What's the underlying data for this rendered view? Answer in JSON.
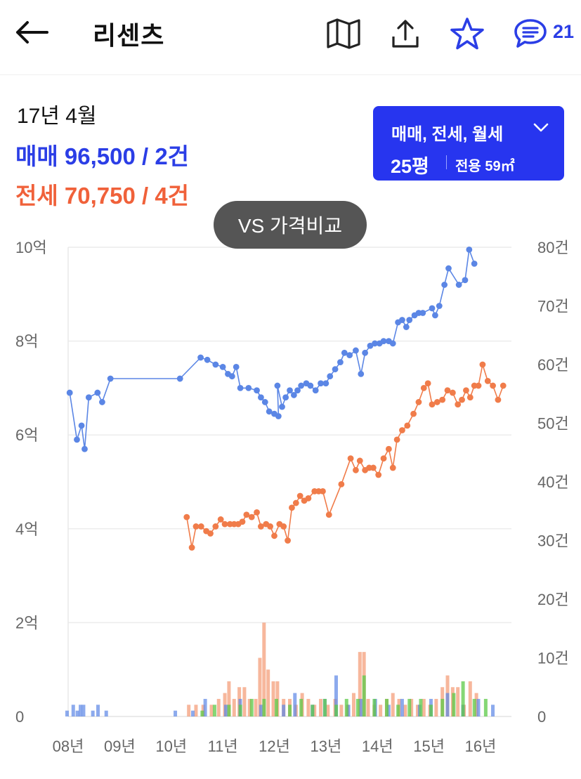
{
  "header": {
    "title": "리센츠",
    "comment_count": "21",
    "accent": "#2b3ee6"
  },
  "summary": {
    "period": "17년 4월",
    "sale": "매매 96,500 / 2건",
    "jeonse": "전세 70,750 / 4건"
  },
  "filter": {
    "types": "매매, 전세, 월세",
    "size": "25평",
    "area": "전용 59㎡"
  },
  "compare_button": "VS 가격비교",
  "chart_data": {
    "type": "line",
    "x_axis": {
      "ticks": [
        "08년",
        "09년",
        "10년",
        "11년",
        "12년",
        "13년",
        "14년",
        "15년",
        "16년"
      ],
      "range": [
        2008.0,
        2016.6
      ]
    },
    "y_left": {
      "ticks": [
        "0",
        "2억",
        "4억",
        "6억",
        "8억",
        "10억"
      ],
      "range": [
        0,
        10
      ]
    },
    "y_right": {
      "ticks": [
        "0",
        "10건",
        "20건",
        "30건",
        "40건",
        "50건",
        "60건",
        "70건",
        "80건"
      ],
      "range": [
        0,
        80
      ]
    },
    "grid": true,
    "colors": {
      "sale": "#5b86e5",
      "jeonse": "#f07c4a",
      "wolse": "#5cc948"
    },
    "series": [
      {
        "key": "sale",
        "points": [
          [
            2008.03,
            6.9
          ],
          [
            2008.17,
            5.9
          ],
          [
            2008.26,
            6.2
          ],
          [
            2008.32,
            5.7
          ],
          [
            2008.4,
            6.8
          ],
          [
            2008.57,
            6.9
          ],
          [
            2008.66,
            6.7
          ],
          [
            2008.82,
            7.2
          ],
          [
            2010.17,
            7.2
          ],
          [
            2010.57,
            7.65
          ],
          [
            2010.7,
            7.6
          ],
          [
            2010.86,
            7.5
          ],
          [
            2011.0,
            7.45
          ],
          [
            2011.1,
            7.3
          ],
          [
            2011.18,
            7.25
          ],
          [
            2011.26,
            7.45
          ],
          [
            2011.34,
            7.0
          ],
          [
            2011.5,
            7.0
          ],
          [
            2011.66,
            6.95
          ],
          [
            2011.74,
            6.8
          ],
          [
            2011.82,
            6.7
          ],
          [
            2011.9,
            6.5
          ],
          [
            2012.0,
            6.45
          ],
          [
            2012.08,
            6.4
          ],
          [
            2012.06,
            7.05
          ],
          [
            2012.15,
            6.6
          ],
          [
            2012.22,
            6.8
          ],
          [
            2012.3,
            6.95
          ],
          [
            2012.38,
            6.85
          ],
          [
            2012.45,
            6.95
          ],
          [
            2012.52,
            7.05
          ],
          [
            2012.62,
            7.1
          ],
          [
            2012.7,
            7.05
          ],
          [
            2012.8,
            6.95
          ],
          [
            2012.9,
            7.1
          ],
          [
            2013.0,
            7.1
          ],
          [
            2013.08,
            7.25
          ],
          [
            2013.18,
            7.4
          ],
          [
            2013.28,
            7.55
          ],
          [
            2013.36,
            7.75
          ],
          [
            2013.46,
            7.7
          ],
          [
            2013.58,
            7.8
          ],
          [
            2013.68,
            7.3
          ],
          [
            2013.76,
            7.75
          ],
          [
            2013.86,
            7.9
          ],
          [
            2013.95,
            7.95
          ],
          [
            2014.04,
            7.95
          ],
          [
            2014.12,
            8.0
          ],
          [
            2014.22,
            8.0
          ],
          [
            2014.3,
            7.95
          ],
          [
            2014.4,
            8.4
          ],
          [
            2014.48,
            8.45
          ],
          [
            2014.56,
            8.3
          ],
          [
            2014.62,
            8.45
          ],
          [
            2014.72,
            8.55
          ],
          [
            2014.8,
            8.6
          ],
          [
            2014.88,
            8.6
          ],
          [
            2015.06,
            8.7
          ],
          [
            2015.12,
            8.55
          ],
          [
            2015.2,
            8.75
          ],
          [
            2015.3,
            9.2
          ],
          [
            2015.38,
            9.55
          ],
          [
            2015.58,
            9.2
          ],
          [
            2015.7,
            9.3
          ],
          [
            2015.78,
            9.95
          ],
          [
            2015.88,
            9.65
          ]
        ]
      },
      {
        "key": "jeonse",
        "points": [
          [
            2010.3,
            4.25
          ],
          [
            2010.4,
            3.6
          ],
          [
            2010.48,
            4.05
          ],
          [
            2010.58,
            4.05
          ],
          [
            2010.68,
            3.95
          ],
          [
            2010.76,
            3.9
          ],
          [
            2010.86,
            4.05
          ],
          [
            2010.96,
            4.2
          ],
          [
            2011.04,
            4.1
          ],
          [
            2011.14,
            4.1
          ],
          [
            2011.22,
            4.1
          ],
          [
            2011.3,
            4.1
          ],
          [
            2011.38,
            4.15
          ],
          [
            2011.46,
            4.3
          ],
          [
            2011.56,
            4.25
          ],
          [
            2011.66,
            4.35
          ],
          [
            2011.74,
            4.05
          ],
          [
            2011.84,
            4.1
          ],
          [
            2011.92,
            4.05
          ],
          [
            2012.0,
            3.85
          ],
          [
            2012.1,
            4.1
          ],
          [
            2012.18,
            4.05
          ],
          [
            2012.26,
            3.75
          ],
          [
            2012.34,
            4.45
          ],
          [
            2012.42,
            4.55
          ],
          [
            2012.5,
            4.7
          ],
          [
            2012.58,
            4.6
          ],
          [
            2012.66,
            4.65
          ],
          [
            2012.78,
            4.8
          ],
          [
            2012.86,
            4.8
          ],
          [
            2012.94,
            4.8
          ],
          [
            2013.06,
            4.3
          ],
          [
            2013.3,
            4.95
          ],
          [
            2013.48,
            5.5
          ],
          [
            2013.58,
            5.25
          ],
          [
            2013.66,
            5.45
          ],
          [
            2013.76,
            5.25
          ],
          [
            2013.84,
            5.3
          ],
          [
            2013.92,
            5.3
          ],
          [
            2014.02,
            5.15
          ],
          [
            2014.12,
            5.5
          ],
          [
            2014.22,
            5.7
          ],
          [
            2014.3,
            5.3
          ],
          [
            2014.38,
            5.9
          ],
          [
            2014.48,
            6.1
          ],
          [
            2014.58,
            6.2
          ],
          [
            2014.7,
            6.45
          ],
          [
            2014.8,
            6.7
          ],
          [
            2014.9,
            7.0
          ],
          [
            2014.98,
            7.1
          ],
          [
            2015.06,
            6.65
          ],
          [
            2015.16,
            6.7
          ],
          [
            2015.26,
            6.75
          ],
          [
            2015.36,
            6.95
          ],
          [
            2015.46,
            6.9
          ],
          [
            2015.56,
            6.65
          ],
          [
            2015.64,
            6.75
          ],
          [
            2015.72,
            6.95
          ],
          [
            2015.8,
            6.8
          ],
          [
            2015.88,
            7.05
          ],
          [
            2015.96,
            7.05
          ],
          [
            2016.04,
            7.5
          ],
          [
            2016.14,
            7.15
          ],
          [
            2016.24,
            7.05
          ],
          [
            2016.34,
            6.75
          ],
          [
            2016.44,
            7.05
          ]
        ]
      }
    ],
    "volume_bars": {
      "unit": "건",
      "sale": [
        [
          2008.02,
          1
        ],
        [
          2008.14,
          2
        ],
        [
          2008.22,
          1
        ],
        [
          2008.28,
          2
        ],
        [
          2008.34,
          2
        ],
        [
          2008.52,
          1
        ],
        [
          2008.62,
          2
        ],
        [
          2008.78,
          1
        ],
        [
          2010.12,
          1
        ],
        [
          2010.46,
          1
        ],
        [
          2010.7,
          3
        ],
        [
          2011.1,
          2
        ],
        [
          2011.38,
          3
        ],
        [
          2011.78,
          2
        ],
        [
          2012.22,
          2
        ],
        [
          2012.44,
          4
        ],
        [
          2012.78,
          2
        ],
        [
          2013.02,
          3
        ],
        [
          2013.24,
          7
        ],
        [
          2013.48,
          2
        ],
        [
          2013.72,
          3
        ],
        [
          2014.0,
          3
        ],
        [
          2014.26,
          2
        ],
        [
          2014.52,
          3
        ],
        [
          2014.86,
          2
        ],
        [
          2015.08,
          3
        ],
        [
          2015.4,
          4
        ],
        [
          2015.7,
          2
        ],
        [
          2016.0,
          3
        ],
        [
          2016.28,
          2
        ]
      ],
      "jeonse": [
        [
          2010.34,
          2
        ],
        [
          2010.48,
          2
        ],
        [
          2010.62,
          2
        ],
        [
          2010.78,
          2
        ],
        [
          2010.92,
          3
        ],
        [
          2011.04,
          4
        ],
        [
          2011.12,
          6
        ],
        [
          2011.22,
          3
        ],
        [
          2011.32,
          5
        ],
        [
          2011.42,
          5
        ],
        [
          2011.52,
          3
        ],
        [
          2011.64,
          3
        ],
        [
          2011.72,
          10
        ],
        [
          2011.8,
          16
        ],
        [
          2011.88,
          8
        ],
        [
          2011.98,
          6
        ],
        [
          2012.06,
          6
        ],
        [
          2012.18,
          3
        ],
        [
          2012.3,
          3
        ],
        [
          2012.42,
          2
        ],
        [
          2012.54,
          4
        ],
        [
          2012.66,
          3
        ],
        [
          2012.78,
          2
        ],
        [
          2012.9,
          3
        ],
        [
          2013.04,
          2
        ],
        [
          2013.18,
          3
        ],
        [
          2013.3,
          2
        ],
        [
          2013.42,
          2
        ],
        [
          2013.54,
          4
        ],
        [
          2013.66,
          11
        ],
        [
          2013.74,
          11
        ],
        [
          2013.82,
          3
        ],
        [
          2013.94,
          2
        ],
        [
          2014.06,
          2
        ],
        [
          2014.18,
          3
        ],
        [
          2014.3,
          4
        ],
        [
          2014.42,
          3
        ],
        [
          2014.54,
          2
        ],
        [
          2014.66,
          3
        ],
        [
          2014.78,
          2
        ],
        [
          2014.9,
          3
        ],
        [
          2015.02,
          2
        ],
        [
          2015.14,
          3
        ],
        [
          2015.26,
          5
        ],
        [
          2015.36,
          7
        ],
        [
          2015.46,
          5
        ],
        [
          2015.56,
          5
        ],
        [
          2015.68,
          2
        ],
        [
          2015.8,
          6
        ],
        [
          2015.92,
          4
        ]
      ],
      "wolse": [
        [
          2010.56,
          1
        ],
        [
          2010.8,
          2
        ],
        [
          2011.08,
          2
        ],
        [
          2011.3,
          2
        ],
        [
          2011.52,
          3
        ],
        [
          2011.76,
          3
        ],
        [
          2012.0,
          3
        ],
        [
          2012.26,
          2
        ],
        [
          2012.48,
          3
        ],
        [
          2012.7,
          2
        ],
        [
          2012.94,
          3
        ],
        [
          2013.16,
          2
        ],
        [
          2013.36,
          3
        ],
        [
          2013.58,
          3
        ],
        [
          2013.7,
          7
        ],
        [
          2013.9,
          3
        ],
        [
          2014.14,
          3
        ],
        [
          2014.36,
          2
        ],
        [
          2014.58,
          3
        ],
        [
          2014.8,
          3
        ],
        [
          2015.0,
          2
        ],
        [
          2015.22,
          3
        ],
        [
          2015.44,
          4
        ],
        [
          2015.62,
          6
        ],
        [
          2015.84,
          3
        ],
        [
          2016.06,
          3
        ]
      ]
    }
  }
}
